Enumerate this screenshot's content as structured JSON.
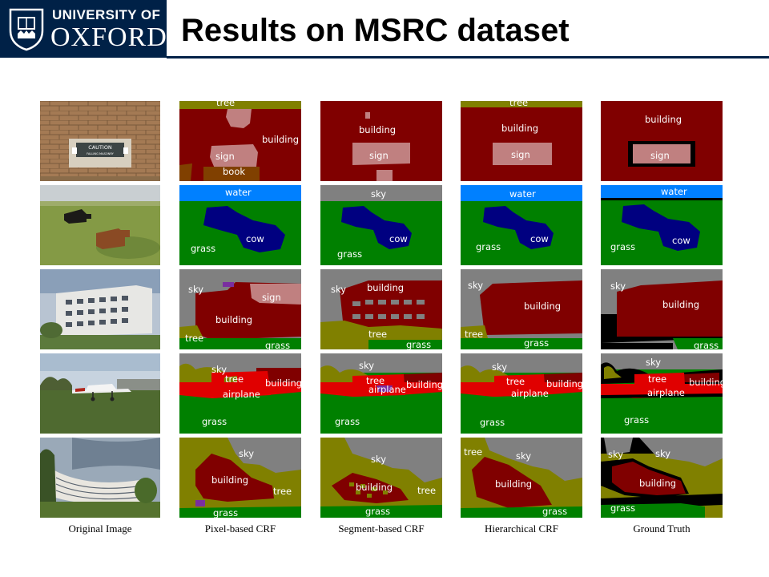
{
  "header": {
    "university_line": "UNIVERSITY OF",
    "oxford": "OXFORD",
    "title": "Results on MSRC dataset"
  },
  "photo_texts": {
    "sign_line_1": "CAUTION",
    "sign_line_2": "FALLING MASONRY"
  },
  "columns": [
    "Original Image",
    "Pixel-based CRF",
    "Segment-based CRF",
    "Hierarchical CRF",
    "Ground Truth"
  ],
  "label_colors": {
    "building": "#800000",
    "sign": "#c08080",
    "book": "#804000",
    "tree": "#808000",
    "sky": "#808080",
    "grass": "#008000",
    "water": "#0080ff",
    "cow": "#000080",
    "airplane": "#e00000",
    "void": "#000000"
  },
  "labels": {
    "r1": {
      "pixel": [
        "tree",
        "building",
        "sign",
        "book"
      ],
      "segment": [
        "building",
        "sign"
      ],
      "hier": [
        "tree",
        "building",
        "sign"
      ],
      "gt": [
        "building",
        "sign"
      ]
    },
    "r2": {
      "pixel": [
        "water",
        "cow",
        "grass"
      ],
      "segment": [
        "sky",
        "cow",
        "grass"
      ],
      "hier": [
        "water",
        "cow",
        "grass"
      ],
      "gt": [
        "water",
        "cow",
        "grass"
      ]
    },
    "r3": {
      "pixel": [
        "sky",
        "sign",
        "building",
        "tree",
        "grass"
      ],
      "segment": [
        "sky",
        "building",
        "tree",
        "grass"
      ],
      "hier": [
        "sky",
        "building",
        "tree",
        "grass"
      ],
      "gt": [
        "sky",
        "building",
        "grass"
      ]
    },
    "r4": {
      "pixel": [
        "sky",
        "tree",
        "building",
        "airplane",
        "grass"
      ],
      "segment": [
        "sky",
        "tree",
        "building",
        "airplane",
        "grass"
      ],
      "hier": [
        "sky",
        "tree",
        "building",
        "airplane",
        "grass"
      ],
      "gt": [
        "sky",
        "tree",
        "building",
        "airplane",
        "grass"
      ]
    },
    "r5": {
      "pixel": [
        "sky",
        "building",
        "tree",
        "grass"
      ],
      "segment": [
        "sky",
        "building",
        "tree",
        "grass"
      ],
      "hier": [
        "tree",
        "sky",
        "building",
        "grass"
      ],
      "gt": [
        "sky",
        "sky",
        "building",
        "grass"
      ]
    }
  }
}
